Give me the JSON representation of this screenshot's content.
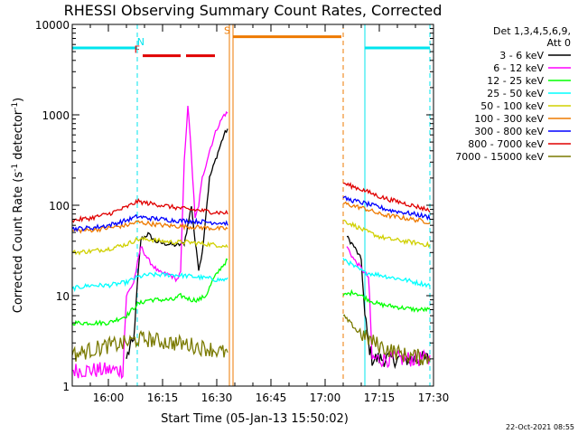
{
  "chart_data": {
    "type": "line",
    "title": "RHESSI Observing Summary Count Rates, Corrected",
    "xlabel": "Start Time (05-Jan-13 15:50:02)",
    "ylabel_main": "Corrected Count Rate (s",
    "ylabel_sup1": "-1",
    "ylabel_mid": " detector",
    "ylabel_sup2": "-1",
    "ylabel_end": ")",
    "x_range_minutes": [
      0,
      100
    ],
    "ylim": [
      1,
      10000
    ],
    "y_scale": "log",
    "x_ticks": [
      {
        "t": 10,
        "label": "16:00"
      },
      {
        "t": 25,
        "label": "16:15"
      },
      {
        "t": 40,
        "label": "16:30"
      },
      {
        "t": 55,
        "label": "16:45"
      },
      {
        "t": 70,
        "label": "17:00"
      },
      {
        "t": 85,
        "label": "17:15"
      },
      {
        "t": 100,
        "label": "17:30"
      }
    ],
    "y_ticks": [
      {
        "v": 1,
        "label": "1"
      },
      {
        "v": 10,
        "label": "10"
      },
      {
        "v": 100,
        "label": "100"
      },
      {
        "v": 1000,
        "label": "1000"
      },
      {
        "v": 10000,
        "label": "10000"
      }
    ],
    "legend_header": [
      "Det 1,3,4,5,6,9,",
      "Att 0"
    ],
    "legend_position": "right",
    "flags": [
      {
        "label": "N",
        "color": "#00e5ee",
        "segments": [
          [
            0,
            18
          ],
          [
            81,
            99
          ]
        ],
        "level": 5500
      },
      {
        "label": "F",
        "color": "#e00000",
        "segments": [
          [
            19.5,
            30
          ],
          [
            31.5,
            39.5
          ]
        ],
        "level": 4500
      },
      {
        "label": "S",
        "color": "#ee7a00",
        "segments": [
          [
            44.5,
            74.5
          ]
        ],
        "level": 7300
      }
    ],
    "lines": [
      {
        "color": "#00e5ee",
        "style": "solid",
        "x": 0
      },
      {
        "color": "#00e5ee",
        "style": "dashed",
        "x": 18
      },
      {
        "color": "#ee7a00",
        "style": "solid",
        "x": 43.5
      },
      {
        "color": "#ee7a00",
        "style": "solid",
        "x": 44.5
      },
      {
        "color": "#ee7a00",
        "style": "dashed",
        "x": 75
      },
      {
        "color": "#00e5ee",
        "style": "solid",
        "x": 81
      },
      {
        "color": "#00e5ee",
        "style": "dashed",
        "x": 99
      }
    ],
    "series": [
      {
        "name": "3 - 6 keV",
        "color": "#000000",
        "pts": [
          [
            15,
            2
          ],
          [
            16,
            2.7
          ],
          [
            17,
            3
          ],
          [
            18,
            13
          ],
          [
            19,
            42
          ],
          [
            21,
            48
          ],
          [
            23,
            40
          ],
          [
            25,
            38
          ],
          [
            27,
            37
          ],
          [
            29,
            36
          ],
          [
            31,
            38
          ],
          [
            32,
            60
          ],
          [
            33,
            100
          ],
          [
            34,
            40
          ],
          [
            35,
            20
          ],
          [
            36,
            30
          ],
          [
            37,
            80
          ],
          [
            38,
            200
          ],
          [
            40,
            350
          ],
          [
            42,
            600
          ],
          [
            43,
            700
          ],
          null,
          [
            76,
            45
          ],
          [
            78,
            35
          ],
          [
            80,
            25
          ],
          [
            81,
            6
          ],
          [
            82,
            3
          ],
          [
            83,
            2
          ],
          [
            85,
            2
          ],
          [
            90,
            2
          ],
          [
            95,
            2
          ],
          [
            99,
            2
          ]
        ]
      },
      {
        "name": "6 - 12 keV",
        "color": "#ff00ff",
        "pts": [
          [
            0,
            1.5
          ],
          [
            5,
            1.5
          ],
          [
            10,
            1.5
          ],
          [
            14,
            1.5
          ],
          [
            15,
            10
          ],
          [
            17,
            14
          ],
          [
            18,
            22
          ],
          [
            19,
            35
          ],
          [
            21,
            25
          ],
          [
            24,
            18
          ],
          [
            27,
            17
          ],
          [
            29,
            15
          ],
          [
            30,
            18
          ],
          [
            31,
            300
          ],
          [
            32,
            1300
          ],
          [
            33,
            350
          ],
          [
            34,
            70
          ],
          [
            35,
            100
          ],
          [
            36,
            200
          ],
          [
            38,
            400
          ],
          [
            40,
            700
          ],
          [
            42,
            1000
          ],
          [
            43,
            1050
          ],
          null,
          [
            76,
            35
          ],
          [
            78,
            25
          ],
          [
            80,
            20
          ],
          [
            82,
            16
          ],
          [
            83,
            2
          ],
          [
            85,
            2
          ],
          [
            90,
            2
          ],
          [
            95,
            2
          ],
          [
            99,
            2
          ]
        ]
      },
      {
        "name": "12 - 25 keV",
        "color": "#00ff00",
        "pts": [
          [
            0,
            5
          ],
          [
            5,
            5
          ],
          [
            10,
            5
          ],
          [
            15,
            6
          ],
          [
            18,
            8
          ],
          [
            21,
            9
          ],
          [
            25,
            9
          ],
          [
            28,
            9
          ],
          [
            30,
            10
          ],
          [
            33,
            9
          ],
          [
            35,
            9
          ],
          [
            37,
            10
          ],
          [
            39,
            15
          ],
          [
            41,
            20
          ],
          [
            43,
            25
          ],
          null,
          [
            75,
            10
          ],
          [
            78,
            11
          ],
          [
            80,
            10
          ],
          [
            82,
            9
          ],
          [
            85,
            8
          ],
          [
            90,
            7.5
          ],
          [
            95,
            7
          ],
          [
            99,
            7
          ]
        ]
      },
      {
        "name": "25 - 50 keV",
        "color": "#00ffff",
        "pts": [
          [
            0,
            12
          ],
          [
            5,
            13
          ],
          [
            10,
            13
          ],
          [
            15,
            14
          ],
          [
            18,
            16
          ],
          [
            21,
            17
          ],
          [
            25,
            17
          ],
          [
            28,
            17
          ],
          [
            32,
            16.5
          ],
          [
            35,
            16
          ],
          [
            38,
            15.5
          ],
          [
            40,
            15
          ],
          [
            43,
            15
          ],
          null,
          [
            75,
            26
          ],
          [
            78,
            21
          ],
          [
            81,
            18
          ],
          [
            85,
            17
          ],
          [
            88,
            16
          ],
          [
            92,
            15
          ],
          [
            95,
            14
          ],
          [
            99,
            13
          ]
        ]
      },
      {
        "name": "50 - 100 keV",
        "color": "#d0d000",
        "pts": [
          [
            0,
            30
          ],
          [
            5,
            31
          ],
          [
            10,
            33
          ],
          [
            15,
            37
          ],
          [
            18,
            42
          ],
          [
            21,
            42
          ],
          [
            25,
            40
          ],
          [
            28,
            39
          ],
          [
            32,
            39
          ],
          [
            35,
            38
          ],
          [
            38,
            37
          ],
          [
            41,
            36
          ],
          [
            43,
            35
          ],
          null,
          [
            75,
            68
          ],
          [
            78,
            60
          ],
          [
            81,
            52
          ],
          [
            85,
            45
          ],
          [
            88,
            42
          ],
          [
            92,
            40
          ],
          [
            96,
            38
          ],
          [
            99,
            36
          ]
        ]
      },
      {
        "name": "100 - 300 keV",
        "color": "#ee7a00",
        "pts": [
          [
            0,
            52
          ],
          [
            5,
            53
          ],
          [
            10,
            56
          ],
          [
            15,
            60
          ],
          [
            18,
            65
          ],
          [
            21,
            63
          ],
          [
            25,
            60
          ],
          [
            28,
            59
          ],
          [
            32,
            58
          ],
          [
            35,
            57
          ],
          [
            38,
            56
          ],
          [
            41,
            55
          ],
          [
            43,
            55
          ],
          null,
          [
            75,
            105
          ],
          [
            78,
            98
          ],
          [
            81,
            92
          ],
          [
            85,
            80
          ],
          [
            88,
            76
          ],
          [
            92,
            72
          ],
          [
            96,
            68
          ],
          [
            99,
            65
          ]
        ]
      },
      {
        "name": "300 - 800 keV",
        "color": "#0000ff",
        "pts": [
          [
            0,
            55
          ],
          [
            5,
            56
          ],
          [
            10,
            60
          ],
          [
            15,
            68
          ],
          [
            18,
            75
          ],
          [
            21,
            72
          ],
          [
            25,
            70
          ],
          [
            28,
            68
          ],
          [
            32,
            67
          ],
          [
            35,
            66
          ],
          [
            38,
            65
          ],
          [
            41,
            64
          ],
          [
            43,
            63
          ],
          null,
          [
            75,
            120
          ],
          [
            78,
            112
          ],
          [
            81,
            105
          ],
          [
            85,
            95
          ],
          [
            88,
            88
          ],
          [
            92,
            83
          ],
          [
            96,
            78
          ],
          [
            99,
            73
          ]
        ]
      },
      {
        "name": "800 - 7000 keV",
        "color": "#e00000",
        "pts": [
          [
            0,
            68
          ],
          [
            5,
            72
          ],
          [
            10,
            80
          ],
          [
            15,
            95
          ],
          [
            18,
            110
          ],
          [
            21,
            105
          ],
          [
            25,
            100
          ],
          [
            28,
            95
          ],
          [
            32,
            90
          ],
          [
            35,
            88
          ],
          [
            38,
            85
          ],
          [
            41,
            83
          ],
          [
            43,
            82
          ],
          null,
          [
            75,
            175
          ],
          [
            78,
            160
          ],
          [
            81,
            145
          ],
          [
            85,
            125
          ],
          [
            88,
            115
          ],
          [
            92,
            105
          ],
          [
            96,
            95
          ],
          [
            99,
            88
          ]
        ]
      },
      {
        "name": "7000 - 15000 keV",
        "color": "#7a7a00",
        "pts": [
          [
            0,
            2.2
          ],
          [
            5,
            2.5
          ],
          [
            10,
            2.8
          ],
          [
            15,
            3
          ],
          [
            18,
            3.3
          ],
          [
            21,
            3.3
          ],
          [
            25,
            3.1
          ],
          [
            28,
            3
          ],
          [
            32,
            2.9
          ],
          [
            35,
            2.7
          ],
          [
            38,
            2.6
          ],
          [
            41,
            2.4
          ],
          [
            43,
            2.3
          ],
          null,
          [
            75,
            6
          ],
          [
            78,
            4.5
          ],
          [
            81,
            3.5
          ],
          [
            85,
            2.8
          ],
          [
            88,
            2.5
          ],
          [
            92,
            2.2
          ],
          [
            96,
            2.1
          ],
          [
            99,
            2
          ]
        ]
      }
    ]
  },
  "footer_date": "22-Oct-2021 08:55"
}
